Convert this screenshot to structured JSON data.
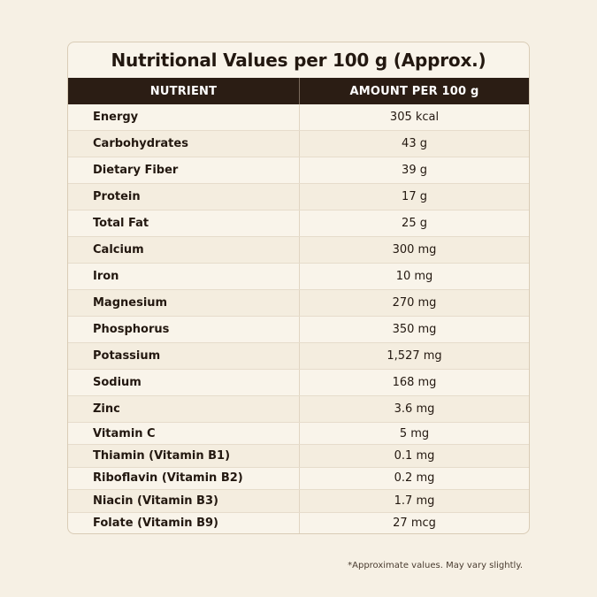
{
  "title": "Nutritional Values per 100 g (Approx.)",
  "columns": {
    "nutrient": "NUTRIENT",
    "amount": "AMOUNT PER 100 g"
  },
  "rows": [
    {
      "nutrient": "Energy",
      "amount": "305 kcal"
    },
    {
      "nutrient": "Carbohydrates",
      "amount": "43 g"
    },
    {
      "nutrient": "Dietary Fiber",
      "amount": "39 g"
    },
    {
      "nutrient": "Protein",
      "amount": "17 g"
    },
    {
      "nutrient": "Total Fat",
      "amount": "25 g"
    },
    {
      "nutrient": "Calcium",
      "amount": "300 mg"
    },
    {
      "nutrient": "Iron",
      "amount": "10 mg"
    },
    {
      "nutrient": "Magnesium",
      "amount": "270 mg"
    },
    {
      "nutrient": "Phosphorus",
      "amount": "350 mg"
    },
    {
      "nutrient": "Potassium",
      "amount": "1,527 mg"
    },
    {
      "nutrient": "Sodium",
      "amount": "168 mg"
    },
    {
      "nutrient": "Zinc",
      "amount": "3.6 mg"
    },
    {
      "nutrient": "Vitamin C",
      "amount": "5 mg"
    },
    {
      "nutrient": "Thiamin (Vitamin B1)",
      "amount": "0.1 mg"
    },
    {
      "nutrient": "Riboflavin (Vitamin B2)",
      "amount": "0.2 mg"
    },
    {
      "nutrient": "Niacin (Vitamin B3)",
      "amount": "1.7 mg"
    },
    {
      "nutrient": "Folate (Vitamin B9)",
      "amount": "27 mcg"
    }
  ],
  "footnote": "*Approximate values. May vary slightly.",
  "colors": {
    "background": "#f6f0e4",
    "header": "#2b1d14",
    "text": "#231810"
  }
}
